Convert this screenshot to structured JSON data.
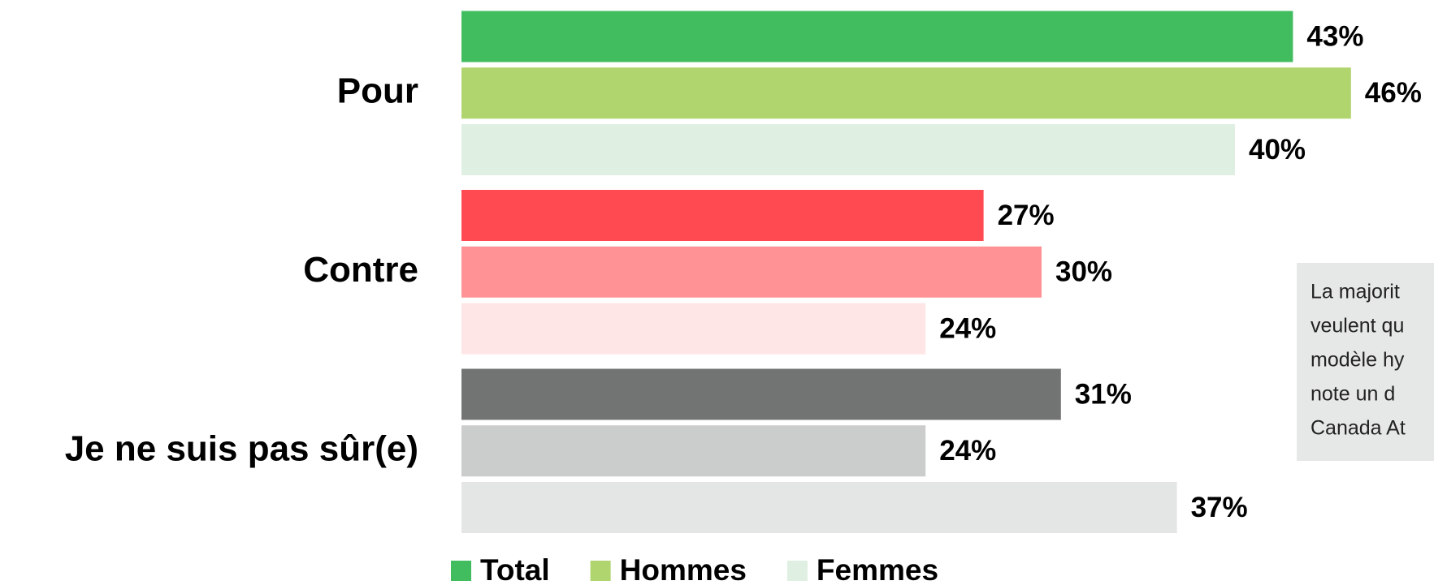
{
  "chart_data": {
    "type": "bar",
    "orientation": "horizontal",
    "categories": [
      "Pour",
      "Contre",
      "Je ne suis pas sûr(e)"
    ],
    "series": [
      {
        "name": "Total",
        "color": "#41bd5f",
        "colors": [
          "#41bd5f",
          "#ff4a52",
          "#727474"
        ],
        "values": [
          43,
          27,
          31
        ],
        "value_labels": [
          "43%",
          "27%",
          "31%"
        ]
      },
      {
        "name": "Hommes",
        "color": "#b0d46e",
        "colors": [
          "#b0d46e",
          "#ff9294",
          "#cbcccc"
        ],
        "values": [
          46,
          30,
          24
        ],
        "value_labels": [
          "46%",
          "30%",
          "24%"
        ]
      },
      {
        "name": "Femmes",
        "color": "#dff0e3",
        "colors": [
          "#dff0e3",
          "#ffe6e6",
          "#e4e5e5"
        ],
        "values": [
          40,
          24,
          37
        ],
        "value_labels": [
          "40%",
          "24%",
          "37%"
        ]
      }
    ],
    "legend": "bottom",
    "annotation_lines": [
      "La majorit",
      "veulent qu",
      "modèle hy",
      "note un d",
      "Canada At"
    ]
  }
}
